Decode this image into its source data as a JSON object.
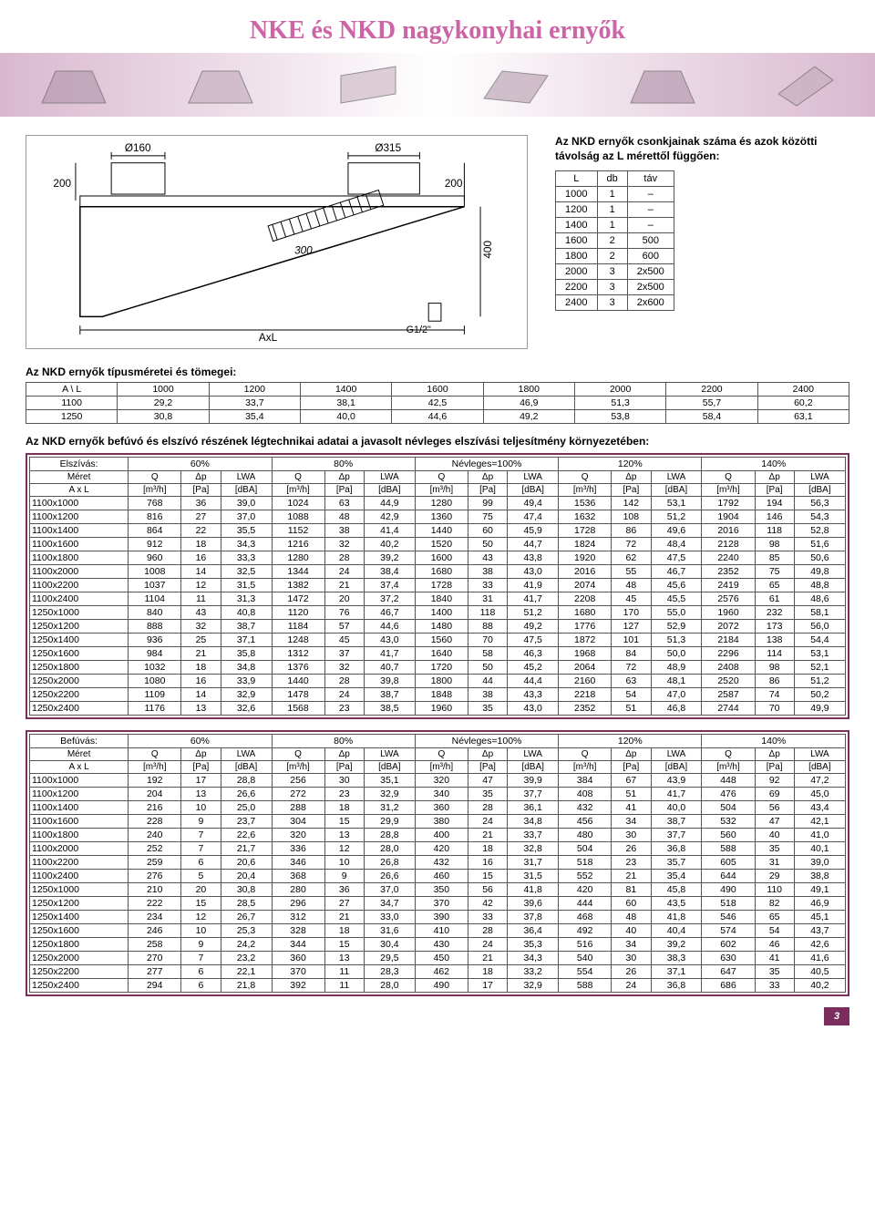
{
  "title": "NKE és NKD nagykonyhai ernyők",
  "diagram": {
    "labels": {
      "d1": "Ø160",
      "d2": "Ø315",
      "h1": "200",
      "h2": "200",
      "h3": "400",
      "slope": "300",
      "joint": "G1/2\"",
      "axis": "AxL"
    }
  },
  "side": {
    "intro": "Az NKD ernyők csonkjainak száma és azok közötti távolság az L mérettől függően:",
    "cols": [
      "L",
      "db",
      "táv"
    ],
    "rows": [
      [
        "1000",
        "1",
        "–"
      ],
      [
        "1200",
        "1",
        "–"
      ],
      [
        "1400",
        "1",
        "–"
      ],
      [
        "1600",
        "2",
        "500"
      ],
      [
        "1800",
        "2",
        "600"
      ],
      [
        "2000",
        "3",
        "2x500"
      ],
      [
        "2200",
        "3",
        "2x500"
      ],
      [
        "2400",
        "3",
        "2x600"
      ]
    ]
  },
  "types": {
    "heading": "Az NKD ernyők típusméretei és tömegei:",
    "cols": [
      "A \\ L",
      "1000",
      "1200",
      "1400",
      "1600",
      "1800",
      "2000",
      "2200",
      "2400"
    ],
    "rows": [
      [
        "1100",
        "29,2",
        "33,7",
        "38,1",
        "42,5",
        "46,9",
        "51,3",
        "55,7",
        "60,2"
      ],
      [
        "1250",
        "30,8",
        "35,4",
        "40,0",
        "44,6",
        "49,2",
        "53,8",
        "58,4",
        "63,1"
      ]
    ]
  },
  "perf_intro": "Az NKD ernyők befúvó és elszívó részének légtechnikai adatai a javasolt névleges elszívási teljesítmény környezetében:",
  "groups": [
    "60%",
    "80%",
    "Névleges=100%",
    "120%",
    "140%"
  ],
  "sub_hdr1": [
    "Méret",
    "Q",
    "Δp",
    "LWA",
    "Q",
    "Δp",
    "LWA",
    "Q",
    "Δp",
    "LWA",
    "Q",
    "Δp",
    "LWA",
    "Q",
    "Δp",
    "LWA"
  ],
  "sub_hdr2": [
    "A x L",
    "[m³/h]",
    "[Pa]",
    "[dBA]",
    "[m³/h]",
    "[Pa]",
    "[dBA]",
    "[m³/h]",
    "[Pa]",
    "[dBA]",
    "[m³/h]",
    "[Pa]",
    "[dBA]",
    "[m³/h]",
    "[Pa]",
    "[dBA]"
  ],
  "elszivas": {
    "label": "Elszívás:",
    "rows": [
      [
        "1100x1000",
        "768",
        "36",
        "39,0",
        "1024",
        "63",
        "44,9",
        "1280",
        "99",
        "49,4",
        "1536",
        "142",
        "53,1",
        "1792",
        "194",
        "56,3"
      ],
      [
        "1100x1200",
        "816",
        "27",
        "37,0",
        "1088",
        "48",
        "42,9",
        "1360",
        "75",
        "47,4",
        "1632",
        "108",
        "51,2",
        "1904",
        "146",
        "54,3"
      ],
      [
        "1100x1400",
        "864",
        "22",
        "35,5",
        "1152",
        "38",
        "41,4",
        "1440",
        "60",
        "45,9",
        "1728",
        "86",
        "49,6",
        "2016",
        "118",
        "52,8"
      ],
      [
        "1100x1600",
        "912",
        "18",
        "34,3",
        "1216",
        "32",
        "40,2",
        "1520",
        "50",
        "44,7",
        "1824",
        "72",
        "48,4",
        "2128",
        "98",
        "51,6"
      ],
      [
        "1100x1800",
        "960",
        "16",
        "33,3",
        "1280",
        "28",
        "39,2",
        "1600",
        "43",
        "43,8",
        "1920",
        "62",
        "47,5",
        "2240",
        "85",
        "50,6"
      ],
      [
        "1100x2000",
        "1008",
        "14",
        "32,5",
        "1344",
        "24",
        "38,4",
        "1680",
        "38",
        "43,0",
        "2016",
        "55",
        "46,7",
        "2352",
        "75",
        "49,8"
      ],
      [
        "1100x2200",
        "1037",
        "12",
        "31,5",
        "1382",
        "21",
        "37,4",
        "1728",
        "33",
        "41,9",
        "2074",
        "48",
        "45,6",
        "2419",
        "65",
        "48,8"
      ],
      [
        "1100x2400",
        "1104",
        "11",
        "31,3",
        "1472",
        "20",
        "37,2",
        "1840",
        "31",
        "41,7",
        "2208",
        "45",
        "45,5",
        "2576",
        "61",
        "48,6"
      ],
      [
        "1250x1000",
        "840",
        "43",
        "40,8",
        "1120",
        "76",
        "46,7",
        "1400",
        "118",
        "51,2",
        "1680",
        "170",
        "55,0",
        "1960",
        "232",
        "58,1"
      ],
      [
        "1250x1200",
        "888",
        "32",
        "38,7",
        "1184",
        "57",
        "44,6",
        "1480",
        "88",
        "49,2",
        "1776",
        "127",
        "52,9",
        "2072",
        "173",
        "56,0"
      ],
      [
        "1250x1400",
        "936",
        "25",
        "37,1",
        "1248",
        "45",
        "43,0",
        "1560",
        "70",
        "47,5",
        "1872",
        "101",
        "51,3",
        "2184",
        "138",
        "54,4"
      ],
      [
        "1250x1600",
        "984",
        "21",
        "35,8",
        "1312",
        "37",
        "41,7",
        "1640",
        "58",
        "46,3",
        "1968",
        "84",
        "50,0",
        "2296",
        "114",
        "53,1"
      ],
      [
        "1250x1800",
        "1032",
        "18",
        "34,8",
        "1376",
        "32",
        "40,7",
        "1720",
        "50",
        "45,2",
        "2064",
        "72",
        "48,9",
        "2408",
        "98",
        "52,1"
      ],
      [
        "1250x2000",
        "1080",
        "16",
        "33,9",
        "1440",
        "28",
        "39,8",
        "1800",
        "44",
        "44,4",
        "2160",
        "63",
        "48,1",
        "2520",
        "86",
        "51,2"
      ],
      [
        "1250x2200",
        "1109",
        "14",
        "32,9",
        "1478",
        "24",
        "38,7",
        "1848",
        "38",
        "43,3",
        "2218",
        "54",
        "47,0",
        "2587",
        "74",
        "50,2"
      ],
      [
        "1250x2400",
        "1176",
        "13",
        "32,6",
        "1568",
        "23",
        "38,5",
        "1960",
        "35",
        "43,0",
        "2352",
        "51",
        "46,8",
        "2744",
        "70",
        "49,9"
      ]
    ]
  },
  "befuvas": {
    "label": "Befúvás:",
    "rows": [
      [
        "1100x1000",
        "192",
        "17",
        "28,8",
        "256",
        "30",
        "35,1",
        "320",
        "47",
        "39,9",
        "384",
        "67",
        "43,9",
        "448",
        "92",
        "47,2"
      ],
      [
        "1100x1200",
        "204",
        "13",
        "26,6",
        "272",
        "23",
        "32,9",
        "340",
        "35",
        "37,7",
        "408",
        "51",
        "41,7",
        "476",
        "69",
        "45,0"
      ],
      [
        "1100x1400",
        "216",
        "10",
        "25,0",
        "288",
        "18",
        "31,2",
        "360",
        "28",
        "36,1",
        "432",
        "41",
        "40,0",
        "504",
        "56",
        "43,4"
      ],
      [
        "1100x1600",
        "228",
        "9",
        "23,7",
        "304",
        "15",
        "29,9",
        "380",
        "24",
        "34,8",
        "456",
        "34",
        "38,7",
        "532",
        "47",
        "42,1"
      ],
      [
        "1100x1800",
        "240",
        "7",
        "22,6",
        "320",
        "13",
        "28,8",
        "400",
        "21",
        "33,7",
        "480",
        "30",
        "37,7",
        "560",
        "40",
        "41,0"
      ],
      [
        "1100x2000",
        "252",
        "7",
        "21,7",
        "336",
        "12",
        "28,0",
        "420",
        "18",
        "32,8",
        "504",
        "26",
        "36,8",
        "588",
        "35",
        "40,1"
      ],
      [
        "1100x2200",
        "259",
        "6",
        "20,6",
        "346",
        "10",
        "26,8",
        "432",
        "16",
        "31,7",
        "518",
        "23",
        "35,7",
        "605",
        "31",
        "39,0"
      ],
      [
        "1100x2400",
        "276",
        "5",
        "20,4",
        "368",
        "9",
        "26,6",
        "460",
        "15",
        "31,5",
        "552",
        "21",
        "35,4",
        "644",
        "29",
        "38,8"
      ],
      [
        "1250x1000",
        "210",
        "20",
        "30,8",
        "280",
        "36",
        "37,0",
        "350",
        "56",
        "41,8",
        "420",
        "81",
        "45,8",
        "490",
        "110",
        "49,1"
      ],
      [
        "1250x1200",
        "222",
        "15",
        "28,5",
        "296",
        "27",
        "34,7",
        "370",
        "42",
        "39,6",
        "444",
        "60",
        "43,5",
        "518",
        "82",
        "46,9"
      ],
      [
        "1250x1400",
        "234",
        "12",
        "26,7",
        "312",
        "21",
        "33,0",
        "390",
        "33",
        "37,8",
        "468",
        "48",
        "41,8",
        "546",
        "65",
        "45,1"
      ],
      [
        "1250x1600",
        "246",
        "10",
        "25,3",
        "328",
        "18",
        "31,6",
        "410",
        "28",
        "36,4",
        "492",
        "40",
        "40,4",
        "574",
        "54",
        "43,7"
      ],
      [
        "1250x1800",
        "258",
        "9",
        "24,2",
        "344",
        "15",
        "30,4",
        "430",
        "24",
        "35,3",
        "516",
        "34",
        "39,2",
        "602",
        "46",
        "42,6"
      ],
      [
        "1250x2000",
        "270",
        "7",
        "23,2",
        "360",
        "13",
        "29,5",
        "450",
        "21",
        "34,3",
        "540",
        "30",
        "38,3",
        "630",
        "41",
        "41,6"
      ],
      [
        "1250x2200",
        "277",
        "6",
        "22,1",
        "370",
        "11",
        "28,3",
        "462",
        "18",
        "33,2",
        "554",
        "26",
        "37,1",
        "647",
        "35",
        "40,5"
      ],
      [
        "1250x2400",
        "294",
        "6",
        "21,8",
        "392",
        "11",
        "28,0",
        "490",
        "17",
        "32,9",
        "588",
        "24",
        "36,8",
        "686",
        "33",
        "40,2"
      ]
    ]
  },
  "page_number": "3",
  "style": {
    "title_color": "#cd64a6",
    "border_color": "#7b2e5e",
    "footer_bg": "#7b2e5e"
  }
}
